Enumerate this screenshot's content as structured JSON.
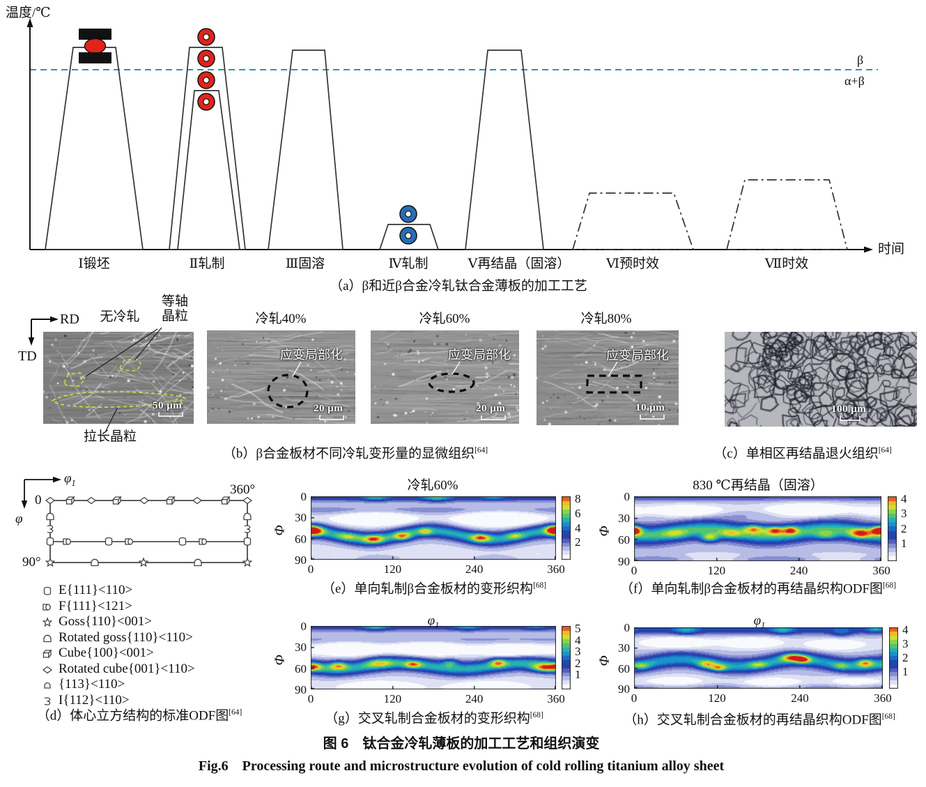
{
  "process": {
    "y_axis": "温度/℃",
    "x_axis": "时间",
    "beta": "β",
    "alpha_beta": "α+β",
    "stages": [
      {
        "label": "Ⅰ锻坯"
      },
      {
        "label": "Ⅱ轧制"
      },
      {
        "label": "Ⅲ固溶"
      },
      {
        "label": "Ⅳ轧制"
      },
      {
        "label": "Ⅴ再结晶（固溶）"
      },
      {
        "label": "Ⅵ预时效"
      },
      {
        "label": "Ⅶ时效"
      }
    ],
    "caption": "（a）β和近β合金冷轧钛合金薄板的加工工艺"
  },
  "micro": {
    "rd": "RD",
    "td": "TD",
    "equiaxed_1": "等轴",
    "equiaxed_2": "晶粒",
    "elongated": "拉长晶粒",
    "panels": [
      {
        "title": "无冷轧",
        "scale": "50 μm"
      },
      {
        "title": "冷轧40%",
        "scale": "20 μm",
        "note": "应变局部化"
      },
      {
        "title": "冷轧60%",
        "scale": "20 μm",
        "note": "应变局部化"
      },
      {
        "title": "冷轧80%",
        "scale": "10 μm",
        "note": "应变局部化"
      },
      {
        "title": "",
        "scale": "100 μm"
      }
    ],
    "caption_b": "（b）β合金板材不同冷轧变形量的显微组织",
    "caption_b_ref": "[64]",
    "caption_c": "（c）单相区再结晶退火组织",
    "caption_c_ref": "[64]"
  },
  "odf": {
    "phi1": "φ",
    "phi1_sub": "1",
    "phi": "φ",
    "t0": "0",
    "t360": "360°",
    "t90": "90°",
    "legend": [
      {
        "sym": "cylinder",
        "label": "E{111}<110>"
      },
      {
        "sym": "half-cylinder",
        "label": "F{111}<121>"
      },
      {
        "sym": "star",
        "label": "Goss{110}<001>"
      },
      {
        "sym": "arch",
        "label": "Rotated goss{110}<110>"
      },
      {
        "sym": "cube",
        "label": "Cube{100}<001>"
      },
      {
        "sym": "diamond",
        "label": "Rotated cube{001}<110>"
      },
      {
        "sym": "arch-small",
        "label": "{113}<110>"
      },
      {
        "sym": "hook",
        "label": "I{112}<110>"
      }
    ],
    "caption": "（d）体心立方结构的标准ODF图",
    "caption_ref": "[64]"
  },
  "chart_data": [
    {
      "id": "e",
      "type": "heatmap",
      "title": "冷轧60%",
      "xlabel": "φ1",
      "ylabel": "Φ",
      "x_ticks": [
        0,
        120,
        240,
        360
      ],
      "y_ticks": [
        0,
        30,
        60,
        90
      ],
      "x_range": [
        0,
        360
      ],
      "y_range": [
        0,
        90
      ],
      "vmax": 8,
      "colorbar_ticks": [
        8,
        6,
        4,
        2
      ],
      "caption": "（e）单向轧制β合金板材的变形织构",
      "caption_ref": "[68]",
      "field": {
        "base": 0.12,
        "bands": [
          {
            "c": 55,
            "s": 10,
            "a": 0.5,
            "m": {
              "amp": 6,
              "period": 180,
              "phase": -40
            }
          },
          {
            "c": 0,
            "s": 7,
            "a": 0.3
          },
          {
            "c": 20,
            "s": 7,
            "a": 0.12
          },
          {
            "c": 88,
            "s": 6,
            "a": 0.08
          }
        ],
        "blobs": [
          [
            95,
            31,
            52,
            9,
            -0.34
          ],
          [
            278,
            31,
            58,
            10,
            -0.36
          ],
          [
            40,
            86,
            40,
            8,
            -0.1
          ],
          [
            185,
            88,
            70,
            9,
            -0.12
          ],
          [
            330,
            86,
            40,
            8,
            -0.1
          ],
          [
            95,
            0,
            20,
            6,
            0.26
          ],
          [
            185,
            0,
            22,
            7,
            0.3
          ],
          [
            268,
            0,
            18,
            5,
            0.2
          ],
          [
            6,
            49,
            14,
            7,
            0.45
          ],
          [
            55,
            57,
            18,
            6,
            0.22
          ],
          [
            92,
            61,
            15,
            6,
            0.42
          ],
          [
            135,
            57,
            13,
            6,
            0.4
          ],
          [
            168,
            50,
            10,
            5,
            0.3
          ],
          [
            250,
            59,
            14,
            6,
            0.42
          ],
          [
            300,
            56,
            13,
            5,
            0.22
          ],
          [
            356,
            48,
            12,
            7,
            0.45
          ]
        ]
      }
    },
    {
      "id": "f",
      "type": "heatmap",
      "title": "830 ℃再结晶（固溶）",
      "xlabel": "φ1",
      "ylabel": "Φ",
      "x_ticks": [
        0,
        120,
        240,
        360
      ],
      "y_ticks": [
        0,
        30,
        60,
        90
      ],
      "x_range": [
        0,
        360
      ],
      "y_range": [
        0,
        90
      ],
      "vmax": 4,
      "colorbar_ticks": [
        4,
        3,
        2,
        1
      ],
      "caption": "（f）单向轧制β合金板材的再结晶织构ODF图",
      "caption_ref": "[68]",
      "field": {
        "base": 0.14,
        "bands": [
          {
            "c": 50,
            "s": 13,
            "a": 0.55,
            "m": {
              "amp": 4,
              "period": 180,
              "phase": 30
            }
          },
          {
            "c": 0,
            "s": 6,
            "a": 0.2
          },
          {
            "c": 88,
            "s": 5,
            "a": 0.14
          },
          {
            "c": 25,
            "s": 6,
            "a": 0.08
          }
        ],
        "blobs": [
          [
            75,
            21,
            52,
            8,
            -0.33
          ],
          [
            255,
            20,
            58,
            9,
            -0.35
          ],
          [
            350,
            22,
            28,
            7,
            -0.18
          ],
          [
            115,
            88,
            52,
            6,
            -0.2
          ],
          [
            300,
            88,
            52,
            6,
            -0.2
          ],
          [
            2,
            47,
            10,
            6,
            0.38
          ],
          [
            110,
            58,
            13,
            6,
            0.45
          ],
          [
            175,
            45,
            15,
            6,
            0.42
          ],
          [
            205,
            47,
            13,
            6,
            0.45
          ],
          [
            228,
            47,
            11,
            6,
            0.42
          ],
          [
            330,
            52,
            16,
            7,
            0.4
          ],
          [
            355,
            47,
            11,
            6,
            0.4
          ],
          [
            60,
            52,
            18,
            7,
            0.18
          ],
          [
            140,
            52,
            16,
            6,
            0.22
          ],
          [
            280,
            55,
            16,
            6,
            0.25
          ]
        ]
      }
    },
    {
      "id": "g",
      "type": "heatmap",
      "title": "φ",
      "title_sub": "1",
      "xlabel": "φ1",
      "ylabel": "Φ",
      "x_ticks": [
        0,
        120,
        240,
        360
      ],
      "y_ticks": [
        0,
        30,
        60,
        90
      ],
      "x_range": [
        0,
        360
      ],
      "y_range": [
        0,
        90
      ],
      "vmax": 5,
      "colorbar_ticks": [
        5,
        4,
        3,
        2,
        1
      ],
      "caption": "（g）交叉轧制合金板材的变形织构",
      "caption_ref": "[68]",
      "field": {
        "base": 0.12,
        "bands": [
          {
            "c": 57,
            "s": 10,
            "a": 0.52,
            "m": {
              "amp": 4,
              "period": 185,
              "phase": 10
            }
          },
          {
            "c": 0,
            "s": 7,
            "a": 0.28
          },
          {
            "c": 20,
            "s": 7,
            "a": 0.1
          }
        ],
        "blobs": [
          [
            55,
            32,
            42,
            9,
            -0.32
          ],
          [
            170,
            32,
            52,
            9,
            -0.34
          ],
          [
            300,
            34,
            48,
            9,
            -0.3
          ],
          [
            100,
            87,
            55,
            8,
            -0.2
          ],
          [
            260,
            87,
            55,
            8,
            -0.2
          ],
          [
            95,
            0,
            20,
            6,
            0.26
          ],
          [
            230,
            0,
            20,
            6,
            0.22
          ],
          [
            330,
            0,
            16,
            5,
            0.16
          ],
          [
            5,
            57,
            12,
            5,
            0.25
          ],
          [
            40,
            56,
            13,
            6,
            0.4
          ],
          [
            100,
            52,
            20,
            7,
            0.28
          ],
          [
            150,
            55,
            12,
            5,
            0.38
          ],
          [
            205,
            52,
            11,
            5,
            0.28
          ],
          [
            275,
            52,
            12,
            6,
            0.4
          ],
          [
            345,
            60,
            20,
            6,
            0.5
          ]
        ]
      }
    },
    {
      "id": "h",
      "type": "heatmap",
      "title": "φ",
      "title_sub": "1",
      "xlabel": "φ1",
      "ylabel": "Φ",
      "x_ticks": [
        0,
        120,
        240,
        360
      ],
      "y_ticks": [
        0,
        30,
        60,
        90
      ],
      "x_range": [
        0,
        360
      ],
      "y_range": [
        0,
        90
      ],
      "vmax": 4,
      "colorbar_ticks": [
        4,
        3,
        2,
        1
      ],
      "caption": "（h）交叉轧制合金板材的再结晶织构ODF图",
      "caption_ref": "[68]",
      "field": {
        "base": 0.14,
        "bands": [
          {
            "c": 52,
            "s": 11,
            "a": 0.46,
            "m": {
              "amp": 5,
              "period": 170,
              "phase": 60
            }
          },
          {
            "c": 2,
            "s": 8,
            "a": 0.28
          },
          {
            "c": 88,
            "s": 5,
            "a": 0.1
          }
        ],
        "blobs": [
          [
            60,
            22,
            46,
            8,
            -0.26
          ],
          [
            170,
            22,
            42,
            8,
            -0.24
          ],
          [
            290,
            25,
            42,
            8,
            -0.22
          ],
          [
            60,
            80,
            42,
            8,
            -0.18
          ],
          [
            200,
            82,
            46,
            8,
            -0.2
          ],
          [
            320,
            80,
            38,
            8,
            -0.16
          ],
          [
            75,
            4,
            18,
            7,
            0.22
          ],
          [
            215,
            4,
            17,
            6,
            0.24
          ],
          [
            300,
            8,
            15,
            6,
            0.18
          ],
          [
            350,
            2,
            13,
            5,
            0.2
          ],
          [
            10,
            57,
            13,
            5,
            0.22
          ],
          [
            105,
            55,
            13,
            6,
            0.36
          ],
          [
            122,
            60,
            12,
            5,
            0.42
          ],
          [
            180,
            55,
            14,
            5,
            0.25
          ],
          [
            230,
            44,
            17,
            6,
            0.5
          ],
          [
            245,
            48,
            11,
            5,
            0.4
          ],
          [
            300,
            57,
            11,
            5,
            0.2
          ],
          [
            335,
            52,
            12,
            6,
            0.42
          ]
        ]
      }
    }
  ],
  "figure": {
    "caption_zh": "图 6　钛合金冷轧薄板的加工工艺和组织演变",
    "caption_en": "Fig.6　Processing route and microstructure evolution of cold rolling titanium alloy sheet"
  },
  "colors": {
    "transus_line": "#2b93b5",
    "red_roller": "#e2231a",
    "blue_roller": "#2b6cb3",
    "outline_yellow": "#cede3c"
  }
}
